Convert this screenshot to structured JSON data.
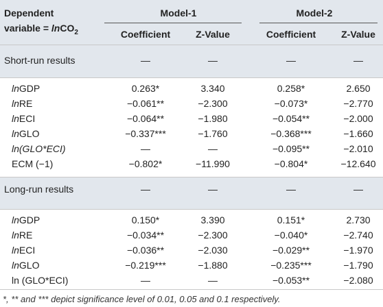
{
  "header": {
    "dep_var_line1": "Dependent",
    "dep_var_line2_prefix": "variable = ",
    "dep_var_ln": "ln",
    "dep_var_co2": "CO",
    "dep_var_sub": "2",
    "model1": "Model-1",
    "model2": "Model-2",
    "coefficient": "Coefficient",
    "zvalue": "Z-Value"
  },
  "sections": [
    {
      "label": "Short-run results",
      "placeholders": [
        "—",
        "—",
        "—",
        "—"
      ],
      "rows": [
        {
          "ln": "ln",
          "var": "GDP",
          "m1_coef": "0.263*",
          "m1_z": "3.340",
          "m2_coef": "0.258*",
          "m2_z": "2.650"
        },
        {
          "ln": "ln",
          "var": "RE",
          "m1_coef": "−0.061**",
          "m1_z": "−2.300",
          "m2_coef": "−0.073*",
          "m2_z": "−2.770"
        },
        {
          "ln": "ln",
          "var": "ECI",
          "m1_coef": "−0.064**",
          "m1_z": "−1.980",
          "m2_coef": "−0.054**",
          "m2_z": "−2.000"
        },
        {
          "ln": "ln",
          "var": "GLO",
          "m1_coef": "−0.337***",
          "m1_z": "−1.760",
          "m2_coef": "−0.368***",
          "m2_z": "−1.660"
        },
        {
          "ln": "",
          "var": "ln(GLO*ECI)",
          "m1_coef": "—",
          "m1_z": "—",
          "m2_coef": "−0.095**",
          "m2_z": "−2.010"
        },
        {
          "ln": "",
          "var": "ECM (−1)",
          "m1_coef": "−0.802*",
          "m1_z": "−11.990",
          "m2_coef": "−0.804*",
          "m2_z": "−12.640"
        }
      ]
    },
    {
      "label": "Long-run results",
      "placeholders": [
        "—",
        "—",
        "—",
        "—"
      ],
      "rows": [
        {
          "ln": "ln",
          "var": "GDP",
          "m1_coef": "0.150*",
          "m1_z": "3.390",
          "m2_coef": "0.151*",
          "m2_z": "2.730"
        },
        {
          "ln": "ln",
          "var": "RE",
          "m1_coef": "−0.034**",
          "m1_z": "−2.300",
          "m2_coef": "−0.040*",
          "m2_z": "−2.740"
        },
        {
          "ln": "ln",
          "var": "ECI",
          "m1_coef": "−0.036**",
          "m1_z": "−2.030",
          "m2_coef": "−0.029**",
          "m2_z": "−1.970"
        },
        {
          "ln": "ln",
          "var": "GLO",
          "m1_coef": "−0.219***",
          "m1_z": "−1.880",
          "m2_coef": "−0.235***",
          "m2_z": "−1.790"
        },
        {
          "ln": "",
          "var": "ln (GLO*ECI)",
          "m1_coef": "—",
          "m1_z": "—",
          "m2_coef": "−0.053**",
          "m2_z": "−2.080"
        }
      ]
    }
  ],
  "footnote": "*, ** and *** depict significance level of 0.01, 0.05 and 0.1 respectively."
}
